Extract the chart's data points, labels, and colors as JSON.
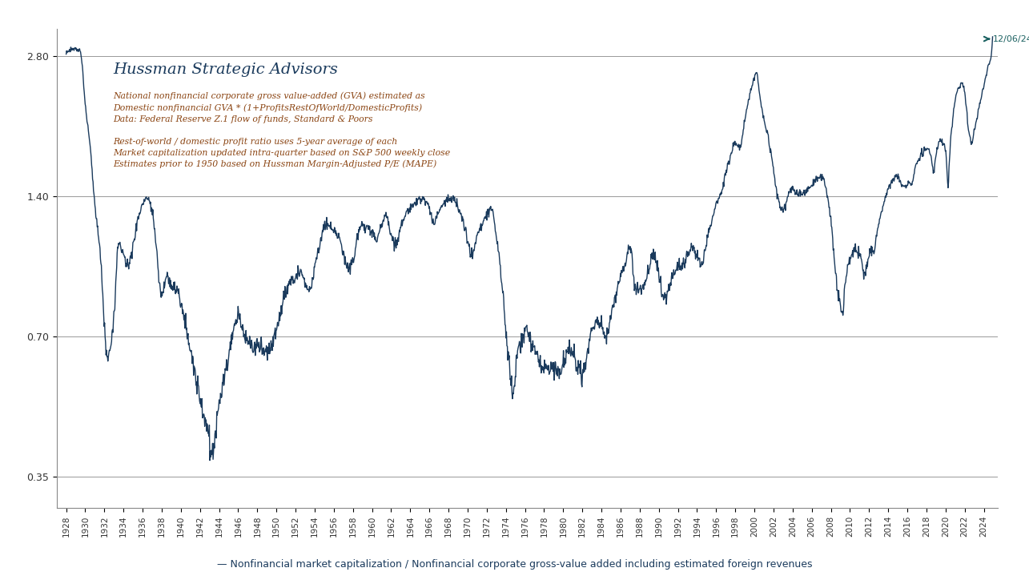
{
  "title": "Hussman Strategic Advisors",
  "annotation_lines": [
    "National nonfinancial corporate gross value-added (GVA) estimated as",
    "Domestic nonfinancial GVA * (1+ProfitsRestOfWorld/DomesticProfits)",
    "Data: Federal Reserve Z.1 flow of funds, Standard & Poors",
    "",
    "Rest-of-world / domestic profit ratio uses 5-year average of each",
    "Market capitalization updated intra-quarter based on S&P 500 weekly close",
    "Estimates prior to 1950 based on Hussman Margin-Adjusted P/E (MAPE)"
  ],
  "legend_label": "— Nonfinancial market capitalization / Nonfinancial corporate gross-value added including estimated foreign revenues",
  "date_label": "12/06/24",
  "line_color": "#1a3a5c",
  "annotation_color": "#8B4513",
  "title_color": "#1a3a5c",
  "background_color": "#ffffff",
  "yticks": [
    0.35,
    0.7,
    1.4,
    2.8
  ],
  "ytick_labels": [
    "0.35",
    "0.70",
    "1.40",
    "2.80"
  ],
  "ymin": 0.3,
  "ymax": 3.2,
  "xmin": 1927,
  "xmax": 2025.5
}
